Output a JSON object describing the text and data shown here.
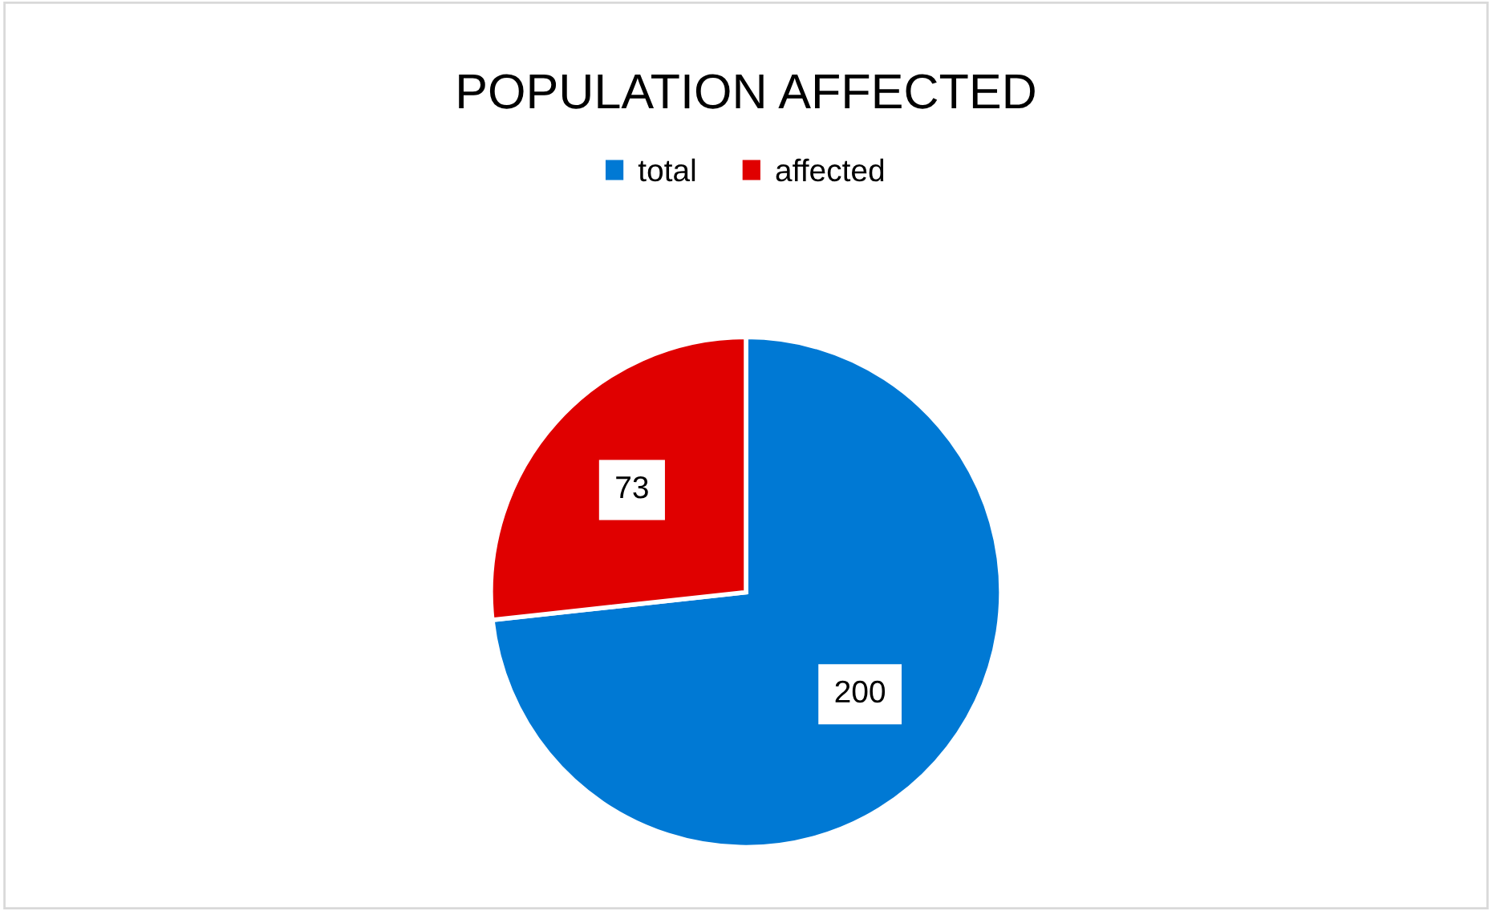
{
  "chart_data": {
    "type": "pie",
    "title": "POPULATION AFFECTED",
    "categories": [
      "total",
      "affected"
    ],
    "values": [
      200,
      73
    ],
    "colors": [
      "#0079d4",
      "#e00000"
    ],
    "data_labels": true,
    "legend": "top"
  }
}
